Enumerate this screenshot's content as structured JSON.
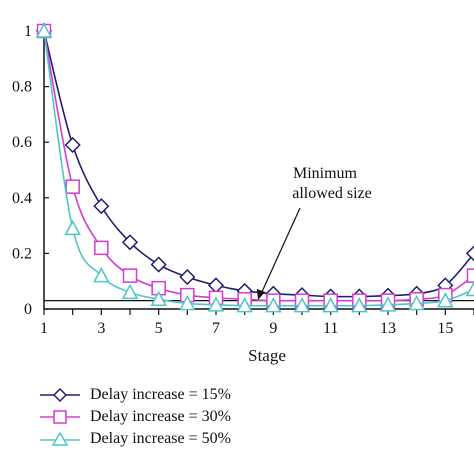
{
  "chart_data": {
    "type": "line",
    "xlabel": "Stage",
    "ylabel": "",
    "xlim": [
      1,
      16
    ],
    "ylim": [
      0,
      1
    ],
    "x_ticks": [
      1,
      3,
      5,
      7,
      9,
      11,
      13,
      15
    ],
    "y_ticks": [
      0,
      0.2,
      0.4,
      0.6,
      0.8,
      1
    ],
    "y_tick_labels": [
      "0",
      "0.2",
      "0.4",
      "0.6",
      "0.8",
      "1"
    ],
    "reference_line": {
      "y": 0.03
    },
    "annotation": {
      "text_lines": [
        "Minimum",
        "allowed size"
      ],
      "points_to": {
        "x": 8.5,
        "y": 0.03
      }
    },
    "legend_placement": "bottom-left",
    "grid": false,
    "series": [
      {
        "name": "Delay increase = 15%",
        "marker": "diamond",
        "color": "#1f1f6e",
        "x": [
          1,
          2,
          3,
          4,
          5,
          6,
          7,
          8,
          9,
          10,
          11,
          12,
          13,
          14,
          15,
          16
        ],
        "y": [
          1.0,
          0.59,
          0.37,
          0.24,
          0.16,
          0.115,
          0.085,
          0.065,
          0.055,
          0.05,
          0.045,
          0.045,
          0.048,
          0.055,
          0.085,
          0.2
        ]
      },
      {
        "name": "Delay increase = 30%",
        "marker": "square",
        "color": "#d63ad0",
        "x": [
          1,
          2,
          3,
          4,
          5,
          6,
          7,
          8,
          9,
          10,
          11,
          12,
          13,
          14,
          15,
          16
        ],
        "y": [
          1.0,
          0.44,
          0.22,
          0.12,
          0.075,
          0.05,
          0.04,
          0.035,
          0.03,
          0.03,
          0.03,
          0.03,
          0.03,
          0.035,
          0.05,
          0.12
        ]
      },
      {
        "name": "Delay increase = 50%",
        "marker": "triangle",
        "color": "#4fc5c5",
        "x": [
          1,
          2,
          3,
          4,
          5,
          6,
          7,
          8,
          9,
          10,
          11,
          12,
          13,
          14,
          15,
          16
        ],
        "y": [
          1.0,
          0.29,
          0.12,
          0.06,
          0.035,
          0.02,
          0.015,
          0.012,
          0.012,
          0.012,
          0.012,
          0.012,
          0.015,
          0.02,
          0.03,
          0.07
        ]
      }
    ]
  }
}
